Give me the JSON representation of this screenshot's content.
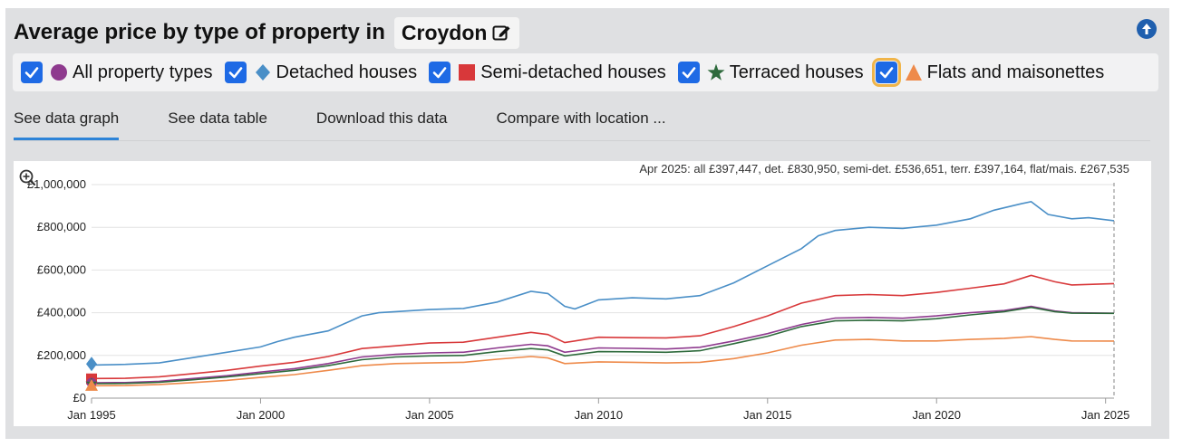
{
  "header": {
    "title": "Average price by type of property in",
    "location": "Croydon"
  },
  "legend": [
    {
      "label": "All property types",
      "symbol": "circle",
      "color": "#8e3a8e",
      "checked": true
    },
    {
      "label": "Detached houses",
      "symbol": "diamond",
      "color": "#4a8fc7",
      "checked": true
    },
    {
      "label": "Semi-detached houses",
      "symbol": "square",
      "color": "#d8383a",
      "checked": true
    },
    {
      "label": "Terraced houses",
      "symbol": "star",
      "color": "#2e6a3c",
      "checked": true
    },
    {
      "label": "Flats and maisonettes",
      "symbol": "triangle",
      "color": "#ee8a4a",
      "checked": true
    }
  ],
  "tabs": [
    "See data graph",
    "See data table",
    "Download this data",
    "Compare with location ..."
  ],
  "chart_data": {
    "type": "line",
    "annotation": "Apr 2025: all £397,447, det. £830,950, semi-det. £536,651, terr. £397,164, flat/mais. £267,535",
    "y_ticks": [
      "£0",
      "£200,000",
      "£400,000",
      "£600,000",
      "£800,000",
      "£1,000,000"
    ],
    "x_ticks": [
      "Jan 1995",
      "Jan 2000",
      "Jan 2005",
      "Jan 2010",
      "Jan 2015",
      "Jan 2020",
      "Jan 2025"
    ],
    "xlim": [
      1995.0,
      2025.25
    ],
    "ylim": [
      0,
      1000000
    ],
    "grid": true,
    "series": [
      {
        "name": "Detached houses",
        "color": "#4a8fc7",
        "points": [
          [
            1995.0,
            155000
          ],
          [
            1996.0,
            158000
          ],
          [
            1997.0,
            165000
          ],
          [
            1998.0,
            190000
          ],
          [
            1999.0,
            215000
          ],
          [
            2000.0,
            240000
          ],
          [
            2000.5,
            265000
          ],
          [
            2001.0,
            285000
          ],
          [
            2002.0,
            315000
          ],
          [
            2003.0,
            385000
          ],
          [
            2003.5,
            400000
          ],
          [
            2004.0,
            405000
          ],
          [
            2005.0,
            415000
          ],
          [
            2006.0,
            420000
          ],
          [
            2007.0,
            450000
          ],
          [
            2008.0,
            500000
          ],
          [
            2008.5,
            490000
          ],
          [
            2009.0,
            430000
          ],
          [
            2009.3,
            418000
          ],
          [
            2010.0,
            460000
          ],
          [
            2011.0,
            470000
          ],
          [
            2012.0,
            465000
          ],
          [
            2013.0,
            480000
          ],
          [
            2014.0,
            540000
          ],
          [
            2015.0,
            620000
          ],
          [
            2016.0,
            700000
          ],
          [
            2016.5,
            760000
          ],
          [
            2017.0,
            785000
          ],
          [
            2018.0,
            800000
          ],
          [
            2019.0,
            795000
          ],
          [
            2020.0,
            810000
          ],
          [
            2021.0,
            840000
          ],
          [
            2021.7,
            880000
          ],
          [
            2022.5,
            910000
          ],
          [
            2022.8,
            920000
          ],
          [
            2023.3,
            860000
          ],
          [
            2024.0,
            840000
          ],
          [
            2024.5,
            845000
          ],
          [
            2025.25,
            830950
          ]
        ]
      },
      {
        "name": "Semi-detached houses",
        "color": "#d8383a",
        "points": [
          [
            1995.0,
            92000
          ],
          [
            1996.0,
            93000
          ],
          [
            1997.0,
            100000
          ],
          [
            1998.0,
            115000
          ],
          [
            1999.0,
            130000
          ],
          [
            2000.0,
            150000
          ],
          [
            2001.0,
            168000
          ],
          [
            2002.0,
            195000
          ],
          [
            2003.0,
            232000
          ],
          [
            2004.0,
            245000
          ],
          [
            2005.0,
            258000
          ],
          [
            2006.0,
            262000
          ],
          [
            2007.0,
            285000
          ],
          [
            2008.0,
            308000
          ],
          [
            2008.5,
            298000
          ],
          [
            2009.0,
            260000
          ],
          [
            2010.0,
            285000
          ],
          [
            2011.0,
            283000
          ],
          [
            2012.0,
            282000
          ],
          [
            2013.0,
            292000
          ],
          [
            2014.0,
            335000
          ],
          [
            2015.0,
            385000
          ],
          [
            2016.0,
            445000
          ],
          [
            2017.0,
            480000
          ],
          [
            2018.0,
            485000
          ],
          [
            2019.0,
            480000
          ],
          [
            2020.0,
            495000
          ],
          [
            2021.0,
            515000
          ],
          [
            2022.0,
            535000
          ],
          [
            2022.8,
            575000
          ],
          [
            2023.5,
            545000
          ],
          [
            2024.0,
            530000
          ],
          [
            2025.25,
            536651
          ]
        ]
      },
      {
        "name": "All property types",
        "color": "#8e3a8e",
        "points": [
          [
            1995.0,
            72000
          ],
          [
            1996.0,
            73000
          ],
          [
            1997.0,
            79000
          ],
          [
            1998.0,
            92000
          ],
          [
            1999.0,
            105000
          ],
          [
            2000.0,
            122000
          ],
          [
            2001.0,
            138000
          ],
          [
            2002.0,
            162000
          ],
          [
            2003.0,
            193000
          ],
          [
            2004.0,
            205000
          ],
          [
            2005.0,
            212000
          ],
          [
            2006.0,
            215000
          ],
          [
            2007.0,
            235000
          ],
          [
            2008.0,
            252000
          ],
          [
            2008.5,
            245000
          ],
          [
            2009.0,
            215000
          ],
          [
            2010.0,
            235000
          ],
          [
            2011.0,
            233000
          ],
          [
            2012.0,
            230000
          ],
          [
            2013.0,
            238000
          ],
          [
            2014.0,
            268000
          ],
          [
            2015.0,
            302000
          ],
          [
            2016.0,
            345000
          ],
          [
            2017.0,
            375000
          ],
          [
            2018.0,
            378000
          ],
          [
            2019.0,
            374000
          ],
          [
            2020.0,
            385000
          ],
          [
            2021.0,
            400000
          ],
          [
            2022.0,
            410000
          ],
          [
            2022.8,
            430000
          ],
          [
            2023.5,
            408000
          ],
          [
            2024.0,
            400000
          ],
          [
            2025.25,
            397447
          ]
        ]
      },
      {
        "name": "Terraced houses",
        "color": "#2e6a3c",
        "points": [
          [
            1995.0,
            68000
          ],
          [
            1996.0,
            69000
          ],
          [
            1997.0,
            74000
          ],
          [
            1998.0,
            86000
          ],
          [
            1999.0,
            99000
          ],
          [
            2000.0,
            115000
          ],
          [
            2001.0,
            130000
          ],
          [
            2002.0,
            152000
          ],
          [
            2003.0,
            180000
          ],
          [
            2004.0,
            193000
          ],
          [
            2005.0,
            198000
          ],
          [
            2006.0,
            200000
          ],
          [
            2007.0,
            218000
          ],
          [
            2008.0,
            232000
          ],
          [
            2008.5,
            226000
          ],
          [
            2009.0,
            198000
          ],
          [
            2010.0,
            218000
          ],
          [
            2011.0,
            217000
          ],
          [
            2012.0,
            215000
          ],
          [
            2013.0,
            222000
          ],
          [
            2014.0,
            255000
          ],
          [
            2015.0,
            290000
          ],
          [
            2016.0,
            335000
          ],
          [
            2017.0,
            362000
          ],
          [
            2018.0,
            365000
          ],
          [
            2019.0,
            362000
          ],
          [
            2020.0,
            372000
          ],
          [
            2021.0,
            390000
          ],
          [
            2022.0,
            405000
          ],
          [
            2022.8,
            425000
          ],
          [
            2023.5,
            405000
          ],
          [
            2024.0,
            398000
          ],
          [
            2025.25,
            397164
          ]
        ]
      },
      {
        "name": "Flats and maisonettes",
        "color": "#ee8a4a",
        "points": [
          [
            1995.0,
            58000
          ],
          [
            1996.0,
            59000
          ],
          [
            1997.0,
            64000
          ],
          [
            1998.0,
            73000
          ],
          [
            1999.0,
            83000
          ],
          [
            2000.0,
            97000
          ],
          [
            2001.0,
            110000
          ],
          [
            2002.0,
            130000
          ],
          [
            2003.0,
            152000
          ],
          [
            2004.0,
            162000
          ],
          [
            2005.0,
            165000
          ],
          [
            2006.0,
            168000
          ],
          [
            2007.0,
            182000
          ],
          [
            2008.0,
            195000
          ],
          [
            2008.5,
            188000
          ],
          [
            2009.0,
            162000
          ],
          [
            2010.0,
            170000
          ],
          [
            2011.0,
            168000
          ],
          [
            2012.0,
            165000
          ],
          [
            2013.0,
            168000
          ],
          [
            2014.0,
            185000
          ],
          [
            2015.0,
            212000
          ],
          [
            2016.0,
            248000
          ],
          [
            2017.0,
            272000
          ],
          [
            2018.0,
            275000
          ],
          [
            2019.0,
            268000
          ],
          [
            2020.0,
            268000
          ],
          [
            2021.0,
            275000
          ],
          [
            2022.0,
            280000
          ],
          [
            2022.8,
            288000
          ],
          [
            2023.5,
            275000
          ],
          [
            2024.0,
            268000
          ],
          [
            2025.25,
            267535
          ]
        ]
      }
    ],
    "start_markers": [
      {
        "series": "Detached houses",
        "symbol": "diamond",
        "value": 160000
      },
      {
        "series": "Semi-detached houses",
        "symbol": "square",
        "value": 90000
      },
      {
        "series": "All property types",
        "symbol": "circle",
        "value": 72000
      },
      {
        "series": "Terraced houses",
        "symbol": "star",
        "value": 68000
      },
      {
        "series": "Flats and maisonettes",
        "symbol": "triangle",
        "value": 60000
      }
    ]
  }
}
